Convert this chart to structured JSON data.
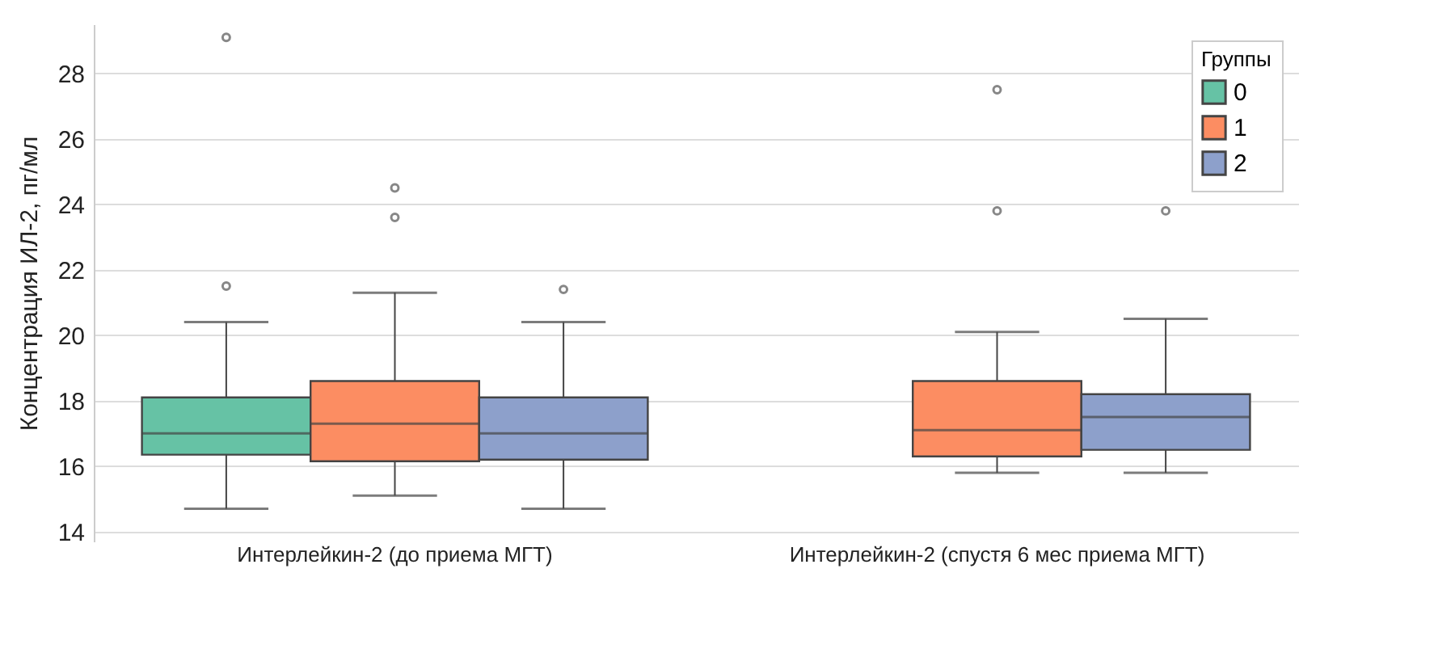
{
  "chart_data": {
    "type": "box",
    "ylabel": "Концентрация ИЛ-2, пг/мл",
    "legend_title": "Группы",
    "legend": "top right",
    "grid": "y",
    "marker": "circle",
    "categories": [
      "Интерлейкин-2 (до приема МГТ)",
      "Интерлейкин-2 (спустя 6 мес приема МГТ)"
    ],
    "ylim": [
      13.7,
      29.5
    ],
    "yticks": [
      14,
      16,
      18,
      20,
      22,
      24,
      26,
      28
    ],
    "series": [
      {
        "name": "0",
        "color": "#66c2a5",
        "boxes": [
          {
            "low": 14.7,
            "q1": 16.35,
            "median": 17.0,
            "q3": 18.1,
            "high": 20.4,
            "outliers": [
              21.5,
              29.1
            ]
          },
          null
        ]
      },
      {
        "name": "1",
        "color": "#fc8d62",
        "boxes": [
          {
            "low": 15.1,
            "q1": 16.15,
            "median": 17.3,
            "q3": 18.6,
            "high": 21.3,
            "outliers": [
              23.6,
              24.5
            ]
          },
          {
            "low": 15.8,
            "q1": 16.3,
            "median": 17.1,
            "q3": 18.6,
            "high": 20.1,
            "outliers": [
              23.8,
              27.5
            ]
          }
        ]
      },
      {
        "name": "2",
        "color": "#8da0cb",
        "boxes": [
          {
            "low": 14.7,
            "q1": 16.2,
            "median": 17.0,
            "q3": 18.1,
            "high": 20.4,
            "outliers": [
              21.4
            ]
          },
          {
            "low": 15.8,
            "q1": 16.5,
            "median": 17.5,
            "q3": 18.2,
            "high": 20.5,
            "outliers": [
              23.8
            ]
          }
        ]
      }
    ]
  }
}
